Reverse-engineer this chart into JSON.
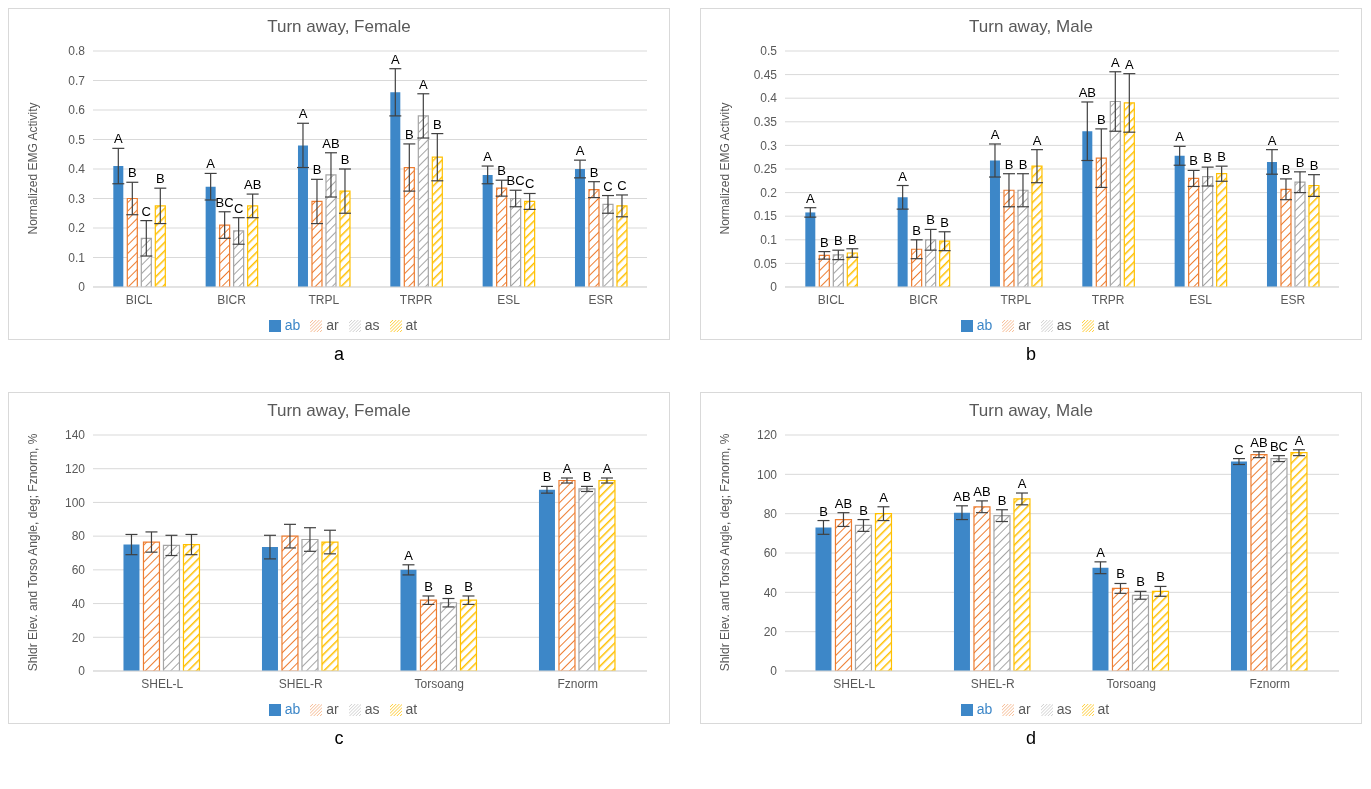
{
  "chart_data": [
    {
      "type": "bar",
      "title": "Turn away, Female",
      "ylabel": "Normalized EMG  Activity",
      "categories": [
        "BICL",
        "BICR",
        "TRPL",
        "TRPR",
        "ESL",
        "ESR"
      ],
      "ylim": [
        0,
        0.8
      ],
      "yticks": [
        0,
        0.1,
        0.2,
        0.3,
        0.4,
        0.5,
        0.6,
        0.7,
        0.8
      ],
      "grid": "y",
      "legend": "bottom",
      "series": [
        {
          "name": "ab",
          "color": "#3d87c8",
          "values": [
            0.41,
            0.34,
            0.48,
            0.66,
            0.38,
            0.4
          ],
          "errors": [
            0.06,
            0.045,
            0.075,
            0.08,
            0.03,
            0.03
          ],
          "value_labels": [
            "A",
            "A",
            "A",
            "A",
            "A",
            "A"
          ]
        },
        {
          "name": "ar",
          "color": "#ed7d31",
          "values": [
            0.3,
            0.21,
            0.29,
            0.405,
            0.335,
            0.33
          ],
          "errors": [
            0.055,
            0.045,
            0.075,
            0.08,
            0.027,
            0.027
          ],
          "value_labels": [
            "B",
            "BC",
            "B",
            "B",
            "B",
            "B"
          ]
        },
        {
          "name": "as",
          "color": "#a5a5a5",
          "values": [
            0.165,
            0.19,
            0.38,
            0.58,
            0.3,
            0.28
          ],
          "errors": [
            0.06,
            0.045,
            0.075,
            0.075,
            0.028,
            0.03
          ],
          "value_labels": [
            "C",
            "C",
            "AB",
            "A",
            "BC",
            "C"
          ]
        },
        {
          "name": "at",
          "color": "#ffc000",
          "values": [
            0.275,
            0.275,
            0.325,
            0.44,
            0.29,
            0.275
          ],
          "errors": [
            0.06,
            0.04,
            0.075,
            0.08,
            0.027,
            0.037
          ],
          "value_labels": [
            "B",
            "AB",
            "B",
            "B",
            "C",
            "C"
          ]
        }
      ],
      "annotations": [
        "a"
      ]
    },
    {
      "type": "bar",
      "title": "Turn away, Male",
      "ylabel": "Normalized EMG  Activity",
      "categories": [
        "BICL",
        "BICR",
        "TRPL",
        "TRPR",
        "ESL",
        "ESR"
      ],
      "ylim": [
        0,
        0.5
      ],
      "yticks": [
        0,
        0.05,
        0.1,
        0.15,
        0.2,
        0.25,
        0.3,
        0.35,
        0.4,
        0.45,
        0.5
      ],
      "grid": "y",
      "legend": "bottom",
      "series": [
        {
          "name": "ab",
          "color": "#3d87c8",
          "values": [
            0.158,
            0.19,
            0.268,
            0.33,
            0.278,
            0.265
          ],
          "errors": [
            0.01,
            0.025,
            0.035,
            0.062,
            0.02,
            0.026
          ],
          "value_labels": [
            "A",
            "A",
            "A",
            "AB",
            "A",
            "A"
          ]
        },
        {
          "name": "ar",
          "color": "#ed7d31",
          "values": [
            0.067,
            0.08,
            0.205,
            0.273,
            0.23,
            0.207
          ],
          "errors": [
            0.008,
            0.02,
            0.035,
            0.062,
            0.017,
            0.022
          ],
          "value_labels": [
            "B",
            "B",
            "B",
            "B",
            "B",
            "B"
          ]
        },
        {
          "name": "as",
          "color": "#a5a5a5",
          "values": [
            0.068,
            0.1,
            0.205,
            0.393,
            0.234,
            0.222
          ],
          "errors": [
            0.01,
            0.022,
            0.035,
            0.063,
            0.02,
            0.022
          ],
          "value_labels": [
            "B",
            "B",
            "B",
            "A",
            "B",
            "B"
          ]
        },
        {
          "name": "at",
          "color": "#ffc000",
          "values": [
            0.072,
            0.097,
            0.256,
            0.39,
            0.24,
            0.215
          ],
          "errors": [
            0.009,
            0.02,
            0.035,
            0.062,
            0.016,
            0.023
          ],
          "value_labels": [
            "B",
            "B",
            "A",
            "A",
            "B",
            "B"
          ]
        }
      ],
      "annotations": [
        "b"
      ]
    },
    {
      "type": "bar",
      "title": "Turn away, Female",
      "ylabel": "Shldr Elev. and Torso Angle, deg; Fznorm, %",
      "categories": [
        "SHEL-L",
        "SHEL-R",
        "Torsoang",
        "Fznorm"
      ],
      "ylim": [
        0,
        140
      ],
      "yticks": [
        0,
        20,
        40,
        60,
        80,
        100,
        120,
        140
      ],
      "grid": "y",
      "legend": "bottom",
      "series": [
        {
          "name": "ab",
          "color": "#3d87c8",
          "values": [
            75,
            73.5,
            60,
            107.5
          ],
          "errors": [
            6,
            7,
            3,
            2
          ],
          "value_labels": [
            null,
            null,
            "A",
            "B"
          ]
        },
        {
          "name": "ar",
          "color": "#ed7d31",
          "values": [
            76.5,
            80,
            42,
            113
          ],
          "errors": [
            6,
            7,
            2.5,
            1.5
          ],
          "value_labels": [
            null,
            null,
            "B",
            "A"
          ]
        },
        {
          "name": "as",
          "color": "#a5a5a5",
          "values": [
            74.5,
            78,
            40.5,
            108
          ],
          "errors": [
            6,
            7,
            2.5,
            1.5
          ],
          "value_labels": [
            null,
            null,
            "B",
            "B"
          ]
        },
        {
          "name": "at",
          "color": "#ffc000",
          "values": [
            75,
            76.5,
            42,
            113
          ],
          "errors": [
            6,
            7,
            2.5,
            1.5
          ],
          "value_labels": [
            null,
            null,
            "B",
            "A"
          ]
        }
      ],
      "annotations": [
        "c"
      ]
    },
    {
      "type": "bar",
      "title": "Turn away, Male",
      "ylabel": "Shldr Elev. and Torso Angle, deg; Fznorm, %",
      "categories": [
        "SHEL-L",
        "SHEL-R",
        "Torsoang",
        "Fznorm"
      ],
      "ylim": [
        0,
        120
      ],
      "yticks": [
        0,
        20,
        40,
        60,
        80,
        100,
        120
      ],
      "grid": "y",
      "legend": "bottom",
      "series": [
        {
          "name": "ab",
          "color": "#3d87c8",
          "values": [
            73,
            80.5,
            52.5,
            106.5
          ],
          "errors": [
            3.5,
            3.5,
            3,
            1.5
          ],
          "value_labels": [
            "B",
            "AB",
            "A",
            "C"
          ]
        },
        {
          "name": "ar",
          "color": "#ed7d31",
          "values": [
            77,
            83.5,
            42,
            110
          ],
          "errors": [
            3.5,
            3,
            2.5,
            1.5
          ],
          "value_labels": [
            "AB",
            "AB",
            "B",
            "AB"
          ]
        },
        {
          "name": "as",
          "color": "#a5a5a5",
          "values": [
            74,
            79,
            38.5,
            108
          ],
          "errors": [
            3,
            3,
            2,
            1.5
          ],
          "value_labels": [
            "B",
            "B",
            "B",
            "BC"
          ]
        },
        {
          "name": "at",
          "color": "#ffc000",
          "values": [
            80,
            87.5,
            40.5,
            111
          ],
          "errors": [
            3.5,
            3,
            2.5,
            1.5
          ],
          "value_labels": [
            "A",
            "A",
            "B",
            "A"
          ]
        }
      ],
      "annotations": [
        "d"
      ]
    }
  ]
}
